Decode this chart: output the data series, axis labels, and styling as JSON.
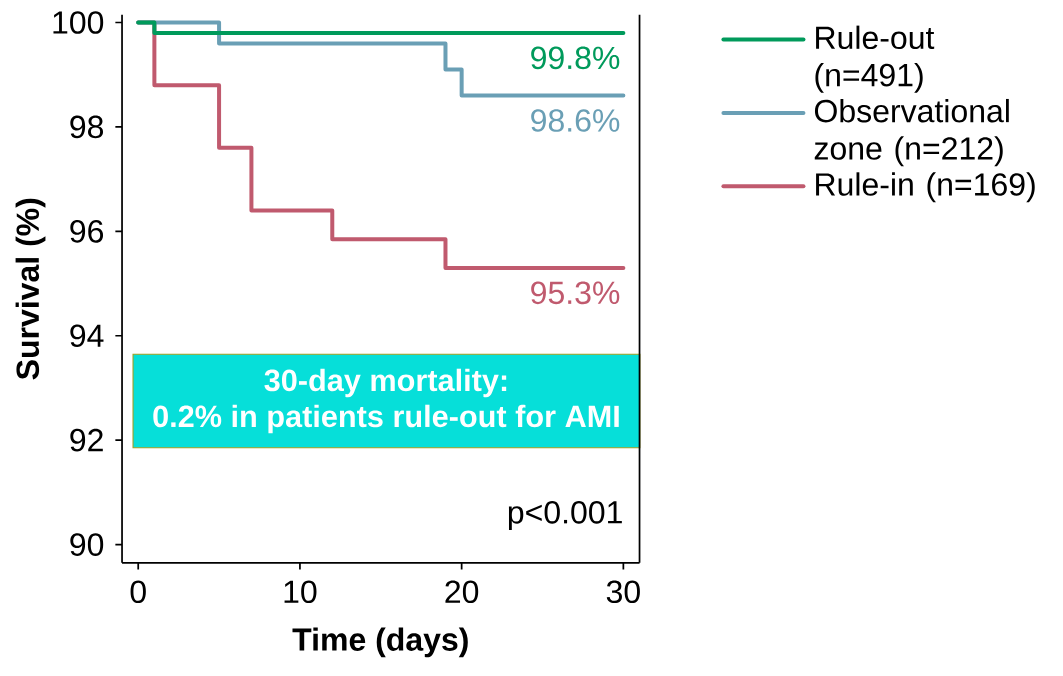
{
  "chart_data": {
    "type": "step",
    "xlabel": "Time (days)",
    "ylabel": "Survival (%)",
    "xlim": [
      -1,
      31
    ],
    "ylim": [
      89.65,
      100.15
    ],
    "xticks": [
      0,
      10,
      20,
      30
    ],
    "yticks": [
      90,
      92,
      94,
      96,
      98,
      100
    ],
    "legend": "right",
    "series": [
      {
        "name": "Rule-out (n=491)",
        "color": "#009a5b",
        "x": [
          0,
          1,
          30
        ],
        "values": [
          100,
          99.8,
          99.8
        ],
        "value_labels": [
          null,
          null,
          "99.8%"
        ]
      },
      {
        "name": "Observational zone (n=212)",
        "color": "#6a9fb5",
        "x": [
          0,
          5,
          19,
          20,
          30
        ],
        "values": [
          100,
          99.6,
          99.1,
          98.6,
          98.6
        ],
        "value_labels": [
          null,
          null,
          null,
          null,
          "98.6%"
        ]
      },
      {
        "name": "Rule-in (n=169)",
        "color": "#c05a6e",
        "x": [
          0,
          1,
          5,
          7,
          12,
          19,
          30
        ],
        "values": [
          100,
          98.8,
          97.6,
          96.4,
          95.85,
          95.3,
          95.3
        ],
        "value_labels": [
          null,
          null,
          null,
          null,
          null,
          null,
          "95.3%"
        ]
      }
    ],
    "annotations": [
      "30-day mortality:",
      "0.2% in patients rule-out for AMI",
      "p<0.001"
    ]
  }
}
